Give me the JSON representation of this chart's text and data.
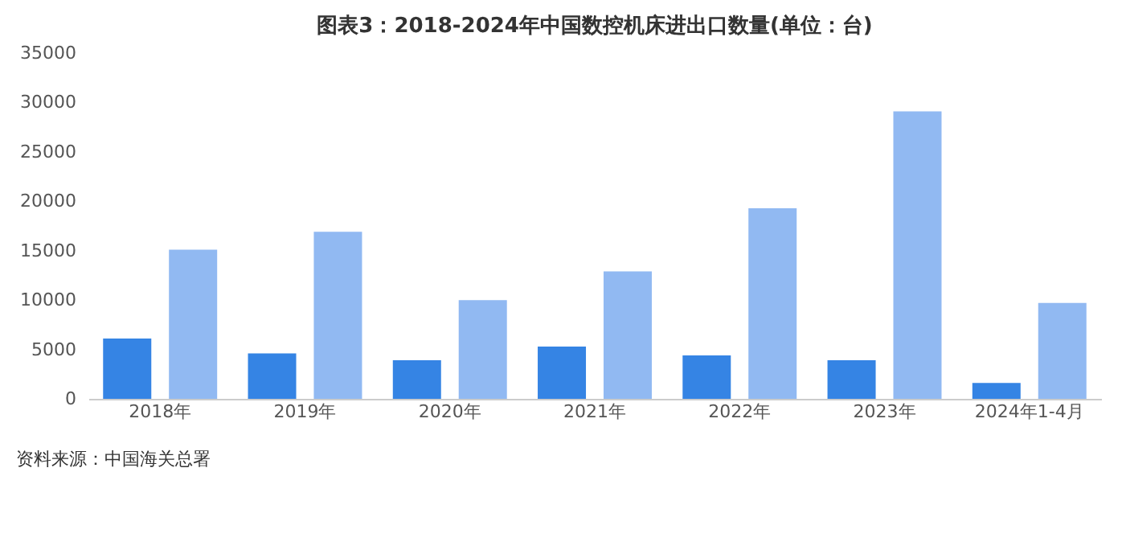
{
  "chart_data": {
    "type": "bar",
    "title": "图表3：2018-2024年中国数控机床进出口数量(单位：台)",
    "categories": [
      "2018年",
      "2019年",
      "2020年",
      "2021年",
      "2022年",
      "2023年",
      "2024年1-4月"
    ],
    "series": [
      {
        "color": "#3584e4",
        "values": [
          6100,
          4600,
          3900,
          5300,
          4400,
          3900,
          1600
        ]
      },
      {
        "color": "#91b9f2",
        "values": [
          15100,
          16900,
          10000,
          12900,
          19300,
          29100,
          9700
        ]
      }
    ],
    "ylim": [
      0,
      35000
    ],
    "yticks": [
      0,
      5000,
      10000,
      15000,
      20000,
      25000,
      30000,
      35000
    ],
    "grid": false,
    "legend": false,
    "annotations": [
      "资料来源：中国海关总署"
    ]
  }
}
